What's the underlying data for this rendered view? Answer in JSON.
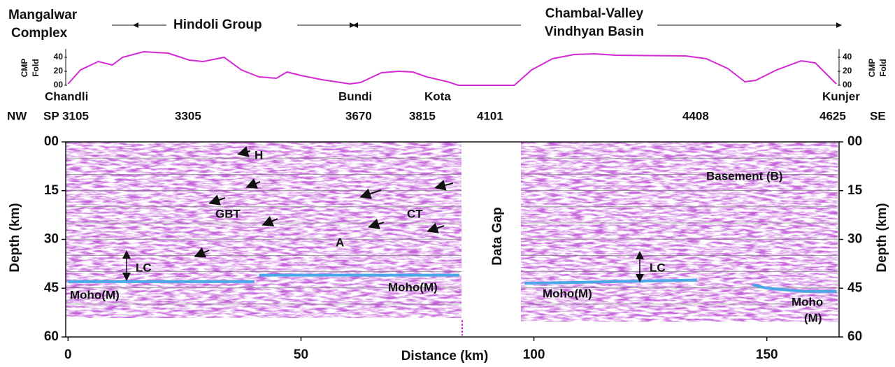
{
  "geology": {
    "mangalwar": [
      "Mangalwar",
      "Complex"
    ],
    "hindoli": "Hindoli Group",
    "chambal": [
      "Chambal-Valley",
      "Vindhyan Basin"
    ]
  },
  "stations": [
    "Chandli",
    "Bundi",
    "Kota",
    "Kunjer"
  ],
  "directions": [
    "NW",
    "SE"
  ],
  "shot_points": [
    "SP 3105",
    "3305",
    "3670",
    "3815",
    "4101",
    "4408",
    "4625"
  ],
  "chart_data": [
    {
      "type": "line",
      "ylabel": [
        "CMP",
        "Fold"
      ],
      "color": "#d42ad4",
      "x": [
        0,
        2.7,
        6.5,
        9.5,
        11.7,
        16.2,
        21.5,
        26,
        29,
        33.5,
        37.2,
        41,
        44.7,
        47,
        50,
        54.5,
        60.5,
        62.8,
        67.3,
        71,
        74,
        77,
        81.5,
        83.8,
        95.8,
        99.5,
        104,
        108.6,
        113,
        117.6,
        132.6,
        137,
        141.6,
        145.3,
        147.6,
        152.1,
        157.4,
        160.4,
        164.9
      ],
      "values": [
        2,
        22,
        34,
        29,
        40,
        48,
        46,
        36,
        34,
        40,
        22,
        12,
        10,
        19,
        14,
        8,
        2,
        4,
        18,
        20,
        19,
        12,
        5,
        0,
        0,
        22,
        38,
        44,
        45,
        43,
        42,
        38,
        24,
        5,
        7,
        22,
        35,
        32,
        2
      ],
      "xlim": [
        -0.5,
        165.5
      ],
      "ylim": [
        0,
        50
      ],
      "yticks": [
        {
          "value": 0,
          "label": "00"
        },
        20,
        40
      ]
    },
    {
      "type": "seismic",
      "xlabel": "Distance (km)",
      "ylabel": "Depth (km)",
      "xlim": [
        -0.5,
        165.5
      ],
      "ylim": [
        0,
        60
      ],
      "xticks": [
        0,
        50,
        100,
        150
      ],
      "yticks": [
        {
          "value": 0,
          "label": "00"
        },
        15,
        30,
        45,
        60
      ],
      "data_gap": "Data Gap",
      "annotations": [
        "H",
        "GBT",
        "CT",
        "A",
        "LC",
        "LC",
        "Basement (B)",
        "Moho(M)",
        "Moho(M)",
        "Moho(M)",
        "Moho",
        "(M)"
      ],
      "moho": {
        "color": "#4aa8e8",
        "segments": [
          {
            "x": [
              0,
              40
            ],
            "y": [
              43,
              43
            ]
          },
          {
            "x": [
              41,
              84
            ],
            "y": [
              41,
              41
            ]
          },
          {
            "x": [
              98,
              135
            ],
            "y": [
              43.5,
              42.5
            ]
          },
          {
            "x": [
              147,
              150,
              158,
              165
            ],
            "y": [
              44,
              45,
              46,
              46
            ]
          }
        ]
      }
    }
  ]
}
